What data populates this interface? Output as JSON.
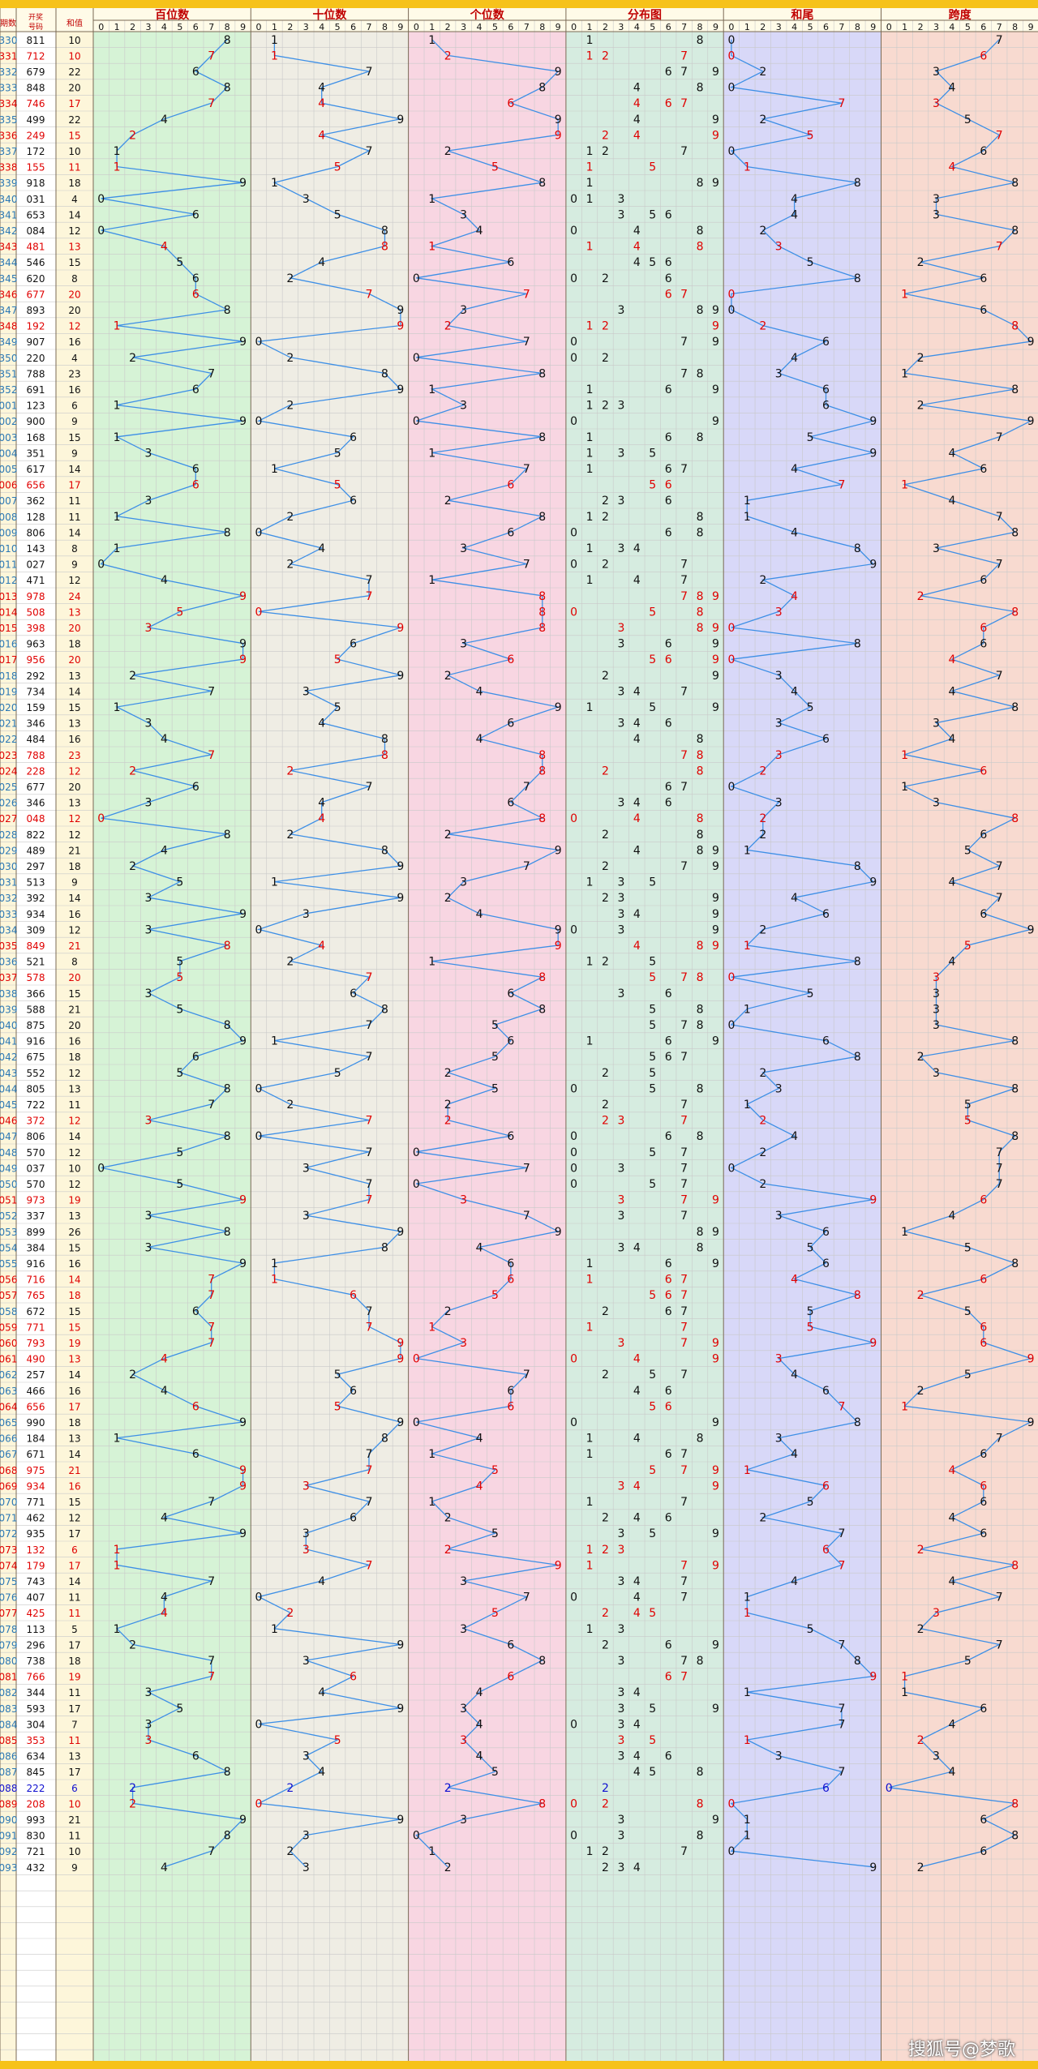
{
  "page": {
    "watermark": "搜狐号@梦歌"
  },
  "chart_data": {
    "type": "table",
    "headers": {
      "issue": "期数",
      "number": "开奖号码",
      "sum": "和值",
      "panels": [
        "百位数",
        "十位数",
        "个位数",
        "分布图",
        "和尾",
        "跨度"
      ]
    },
    "digit_labels": [
      "0",
      "1",
      "2",
      "3",
      "4",
      "5",
      "6",
      "7",
      "8",
      "9"
    ],
    "panel_colors": [
      "#d6f3d6",
      "#efede4",
      "#f8d6e2",
      "#d6ece0",
      "#d8d8f8",
      "#f8dad0"
    ],
    "rows": [
      {
        "issue": "330",
        "number": "811",
        "sum": 10
      },
      {
        "issue": "331",
        "number": "712",
        "sum": 10
      },
      {
        "issue": "332",
        "number": "679",
        "sum": 22
      },
      {
        "issue": "333",
        "number": "848",
        "sum": 20
      },
      {
        "issue": "334",
        "number": "746",
        "sum": 17
      },
      {
        "issue": "335",
        "number": "499",
        "sum": 22
      },
      {
        "issue": "336",
        "number": "249",
        "sum": 15
      },
      {
        "issue": "337",
        "number": "172",
        "sum": 10
      },
      {
        "issue": "338",
        "number": "155",
        "sum": 11
      },
      {
        "issue": "339",
        "number": "918",
        "sum": 18
      },
      {
        "issue": "340",
        "number": "031",
        "sum": 4
      },
      {
        "issue": "341",
        "number": "653",
        "sum": 14
      },
      {
        "issue": "342",
        "number": "084",
        "sum": 12
      },
      {
        "issue": "343",
        "number": "481",
        "sum": 13
      },
      {
        "issue": "344",
        "number": "546",
        "sum": 15
      },
      {
        "issue": "345",
        "number": "620",
        "sum": 8
      },
      {
        "issue": "346",
        "number": "677",
        "sum": 20
      },
      {
        "issue": "347",
        "number": "893",
        "sum": 20
      },
      {
        "issue": "348",
        "number": "192",
        "sum": 12
      },
      {
        "issue": "349",
        "number": "907",
        "sum": 16
      },
      {
        "issue": "350",
        "number": "220",
        "sum": 4
      },
      {
        "issue": "351",
        "number": "788",
        "sum": 23
      },
      {
        "issue": "352",
        "number": "691",
        "sum": 16
      },
      {
        "issue": "001",
        "number": "123",
        "sum": 6
      },
      {
        "issue": "002",
        "number": "900",
        "sum": 9
      },
      {
        "issue": "003",
        "number": "168",
        "sum": 15
      },
      {
        "issue": "004",
        "number": "351",
        "sum": 9
      },
      {
        "issue": "005",
        "number": "617",
        "sum": 14
      },
      {
        "issue": "006",
        "number": "656",
        "sum": 17
      },
      {
        "issue": "007",
        "number": "362",
        "sum": 11
      },
      {
        "issue": "008",
        "number": "128",
        "sum": 11
      },
      {
        "issue": "009",
        "number": "806",
        "sum": 14
      },
      {
        "issue": "010",
        "number": "143",
        "sum": 8
      },
      {
        "issue": "011",
        "number": "027",
        "sum": 9
      },
      {
        "issue": "012",
        "number": "471",
        "sum": 12
      },
      {
        "issue": "013",
        "number": "978",
        "sum": 24
      },
      {
        "issue": "014",
        "number": "508",
        "sum": 13
      },
      {
        "issue": "015",
        "number": "398",
        "sum": 20
      },
      {
        "issue": "016",
        "number": "963",
        "sum": 18
      },
      {
        "issue": "017",
        "number": "956",
        "sum": 20
      },
      {
        "issue": "018",
        "number": "292",
        "sum": 13
      },
      {
        "issue": "019",
        "number": "734",
        "sum": 14
      },
      {
        "issue": "020",
        "number": "159",
        "sum": 15
      },
      {
        "issue": "021",
        "number": "346",
        "sum": 13
      },
      {
        "issue": "022",
        "number": "484",
        "sum": 16
      },
      {
        "issue": "023",
        "number": "788",
        "sum": 23
      },
      {
        "issue": "024",
        "number": "228",
        "sum": 12
      },
      {
        "issue": "025",
        "number": "677",
        "sum": 20
      },
      {
        "issue": "026",
        "number": "346",
        "sum": 13
      },
      {
        "issue": "027",
        "number": "048",
        "sum": 12
      },
      {
        "issue": "028",
        "number": "822",
        "sum": 12
      },
      {
        "issue": "029",
        "number": "489",
        "sum": 21
      },
      {
        "issue": "030",
        "number": "297",
        "sum": 18
      },
      {
        "issue": "031",
        "number": "513",
        "sum": 9
      },
      {
        "issue": "032",
        "number": "392",
        "sum": 14
      },
      {
        "issue": "033",
        "number": "934",
        "sum": 16
      },
      {
        "issue": "034",
        "number": "309",
        "sum": 12
      },
      {
        "issue": "035",
        "number": "849",
        "sum": 21
      },
      {
        "issue": "036",
        "number": "521",
        "sum": 8
      },
      {
        "issue": "037",
        "number": "578",
        "sum": 20
      },
      {
        "issue": "038",
        "number": "366",
        "sum": 15
      },
      {
        "issue": "039",
        "number": "588",
        "sum": 21
      },
      {
        "issue": "040",
        "number": "875",
        "sum": 20
      },
      {
        "issue": "041",
        "number": "916",
        "sum": 16
      },
      {
        "issue": "042",
        "number": "675",
        "sum": 18
      },
      {
        "issue": "043",
        "number": "552",
        "sum": 12
      },
      {
        "issue": "044",
        "number": "805",
        "sum": 13
      },
      {
        "issue": "045",
        "number": "722",
        "sum": 11
      },
      {
        "issue": "046",
        "number": "372",
        "sum": 12
      },
      {
        "issue": "047",
        "number": "806",
        "sum": 14
      },
      {
        "issue": "048",
        "number": "570",
        "sum": 12
      },
      {
        "issue": "049",
        "number": "037",
        "sum": 10
      },
      {
        "issue": "050",
        "number": "570",
        "sum": 12
      },
      {
        "issue": "051",
        "number": "973",
        "sum": 19
      },
      {
        "issue": "052",
        "number": "337",
        "sum": 13
      },
      {
        "issue": "053",
        "number": "899",
        "sum": 26
      },
      {
        "issue": "054",
        "number": "384",
        "sum": 15
      },
      {
        "issue": "055",
        "number": "916",
        "sum": 16
      },
      {
        "issue": "056",
        "number": "716",
        "sum": 14
      },
      {
        "issue": "057",
        "number": "765",
        "sum": 18
      },
      {
        "issue": "058",
        "number": "672",
        "sum": 15
      },
      {
        "issue": "059",
        "number": "771",
        "sum": 15
      },
      {
        "issue": "060",
        "number": "793",
        "sum": 19
      },
      {
        "issue": "061",
        "number": "490",
        "sum": 13
      },
      {
        "issue": "062",
        "number": "257",
        "sum": 14
      },
      {
        "issue": "063",
        "number": "466",
        "sum": 16
      },
      {
        "issue": "064",
        "number": "656",
        "sum": 17
      },
      {
        "issue": "065",
        "number": "990",
        "sum": 18
      },
      {
        "issue": "066",
        "number": "184",
        "sum": 13
      },
      {
        "issue": "067",
        "number": "671",
        "sum": 14
      },
      {
        "issue": "068",
        "number": "975",
        "sum": 21
      },
      {
        "issue": "069",
        "number": "934",
        "sum": 16
      },
      {
        "issue": "070",
        "number": "771",
        "sum": 15
      },
      {
        "issue": "071",
        "number": "462",
        "sum": 12
      },
      {
        "issue": "072",
        "number": "935",
        "sum": 17
      },
      {
        "issue": "073",
        "number": "132",
        "sum": 6
      },
      {
        "issue": "074",
        "number": "179",
        "sum": 17
      },
      {
        "issue": "075",
        "number": "743",
        "sum": 14
      },
      {
        "issue": "076",
        "number": "407",
        "sum": 11
      },
      {
        "issue": "077",
        "number": "425",
        "sum": 11
      },
      {
        "issue": "078",
        "number": "113",
        "sum": 5
      },
      {
        "issue": "079",
        "number": "296",
        "sum": 17
      },
      {
        "issue": "080",
        "number": "738",
        "sum": 18
      },
      {
        "issue": "081",
        "number": "766",
        "sum": 19
      },
      {
        "issue": "082",
        "number": "344",
        "sum": 11
      },
      {
        "issue": "083",
        "number": "593",
        "sum": 17
      },
      {
        "issue": "084",
        "number": "304",
        "sum": 7
      },
      {
        "issue": "085",
        "number": "353",
        "sum": 11
      },
      {
        "issue": "086",
        "number": "634",
        "sum": 13
      },
      {
        "issue": "087",
        "number": "845",
        "sum": 17
      },
      {
        "issue": "088",
        "number": "222",
        "sum": 6
      },
      {
        "issue": "089",
        "number": "208",
        "sum": 10
      },
      {
        "issue": "090",
        "number": "993",
        "sum": 21
      },
      {
        "issue": "091",
        "number": "830",
        "sum": 11
      },
      {
        "issue": "092",
        "number": "721",
        "sum": 10
      },
      {
        "issue": "093",
        "number": "432",
        "sum": 9
      }
    ]
  }
}
